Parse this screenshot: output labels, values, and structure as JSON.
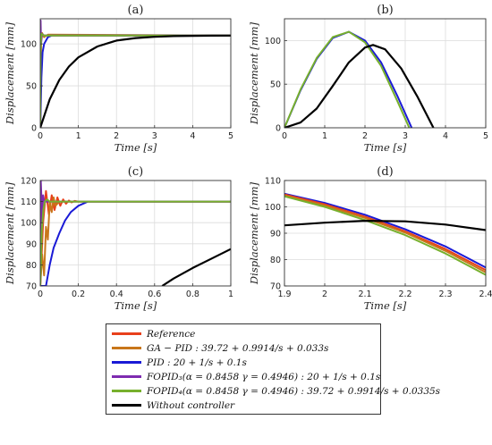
{
  "series_colors": {
    "reference": "#e8401c",
    "ga_pid": "#c8761a",
    "pid": "#1a1ad6",
    "fopid3": "#7e2bb0",
    "fopid4": "#77b02d",
    "without": "#000000"
  },
  "legend": [
    {
      "key": "reference",
      "label": "Reference"
    },
    {
      "key": "ga_pid",
      "label": "GA − PID : 39.72 + 0.9914/s + 0.033s"
    },
    {
      "key": "pid",
      "label": "PID : 20 + 1/s + 0.1s"
    },
    {
      "key": "fopid3",
      "label": "FOPID₃(α = 0.8458 γ = 0.4946) : 20 + 1/s + 0.1s"
    },
    {
      "key": "fopid4",
      "label": "FOPID₄(α = 0.8458 γ = 0.4946) : 39.72 + 0.9914/s + 0.0335s"
    },
    {
      "key": "without",
      "label": "Without controller"
    }
  ],
  "chart_data": [
    {
      "type": "line",
      "title": "(a)",
      "xlabel": "Time [s]",
      "ylabel": "Displacement [mm]",
      "xlim": [
        0,
        5
      ],
      "ylim": [
        0,
        130
      ],
      "xticks": [
        0,
        1,
        2,
        3,
        4,
        5
      ],
      "yticks": [
        0,
        50,
        100
      ],
      "series": [
        {
          "key": "reference",
          "x": [
            0,
            0.02,
            5
          ],
          "y": [
            0,
            110,
            110
          ]
        },
        {
          "key": "ga_pid",
          "x": [
            0,
            0.02,
            0.05,
            0.1,
            0.2,
            5
          ],
          "y": [
            0,
            105,
            113,
            108,
            111,
            110
          ]
        },
        {
          "key": "pid",
          "x": [
            0,
            0.03,
            0.06,
            0.1,
            0.2,
            0.3,
            5
          ],
          "y": [
            0,
            60,
            90,
            100,
            108,
            110,
            110
          ]
        },
        {
          "key": "fopid3",
          "x": [
            0,
            0.01,
            0.02,
            0.05,
            0.1,
            5
          ],
          "y": [
            0,
            128,
            100,
            112,
            110,
            110
          ]
        },
        {
          "key": "fopid4",
          "x": [
            0,
            0.01,
            0.03,
            0.1,
            5
          ],
          "y": [
            0,
            95,
            112,
            110,
            110
          ]
        },
        {
          "key": "without",
          "x": [
            0,
            0.25,
            0.5,
            0.75,
            1,
            1.5,
            2,
            2.5,
            3,
            3.5,
            4,
            4.5,
            5
          ],
          "y": [
            0,
            34,
            57,
            73,
            84,
            97,
            104,
            107,
            108.5,
            109.3,
            109.7,
            109.9,
            110
          ]
        }
      ]
    },
    {
      "type": "line",
      "title": "(b)",
      "xlabel": "Time [s]",
      "ylabel": "Displacement [mm]",
      "xlim": [
        0,
        5
      ],
      "ylim": [
        0,
        125
      ],
      "xticks": [
        0,
        1,
        2,
        3,
        4,
        5
      ],
      "yticks": [
        0,
        50,
        100
      ],
      "series": [
        {
          "key": "pid",
          "x": [
            0,
            0.4,
            0.8,
            1.2,
            1.6,
            2.0,
            2.4,
            2.8,
            3.16
          ],
          "y": [
            0,
            43,
            79,
            103,
            110,
            100,
            75,
            37,
            0
          ]
        },
        {
          "key": "fopid4",
          "x": [
            0,
            0.4,
            0.8,
            1.2,
            1.6,
            2.0,
            2.4,
            2.8,
            3.1
          ],
          "y": [
            0,
            44,
            80,
            104,
            110,
            98,
            71,
            31,
            0
          ]
        },
        {
          "key": "without",
          "x": [
            0,
            0.4,
            0.8,
            1.2,
            1.6,
            2.0,
            2.2,
            2.5,
            2.9,
            3.3,
            3.7
          ],
          "y": [
            0,
            6,
            22,
            48,
            75,
            92,
            95,
            90,
            68,
            36,
            0
          ]
        }
      ]
    },
    {
      "type": "line",
      "title": "(c)",
      "xlabel": "Time [s]",
      "ylabel": "Displacement [mm]",
      "xlim": [
        0,
        1
      ],
      "ylim": [
        70,
        120
      ],
      "xticks": [
        0,
        0.2,
        0.4,
        0.6,
        0.8,
        1
      ],
      "yticks": [
        70,
        80,
        90,
        100,
        110,
        120
      ],
      "series": [
        {
          "key": "reference",
          "x": [
            0,
            0.015,
            0.03,
            0.045,
            0.06,
            0.075,
            0.09,
            0.105,
            0.12,
            0.135,
            0.15,
            0.165,
            0.18,
            0.2,
            1
          ],
          "y": [
            70,
            100,
            115,
            104,
            113,
            106,
            112,
            108,
            111,
            109,
            110.5,
            109.6,
            110.3,
            110,
            110
          ]
        },
        {
          "key": "ga_pid",
          "x": [
            0,
            0.01,
            0.02,
            0.03,
            0.04,
            0.05,
            0.06,
            0.07,
            0.08,
            0.1,
            1
          ],
          "y": [
            70,
            85,
            75,
            98,
            92,
            110,
            105,
            112,
            108,
            110,
            110
          ]
        },
        {
          "key": "pid",
          "x": [
            0,
            0.03,
            0.05,
            0.07,
            0.1,
            0.13,
            0.16,
            0.2,
            0.25,
            1
          ],
          "y": [
            70,
            70,
            80,
            88,
            95,
            101,
            105,
            108,
            110,
            110
          ]
        },
        {
          "key": "fopid3",
          "x": [
            0,
            0.003,
            0.006,
            0.01,
            0.015,
            0.02,
            1
          ],
          "y": [
            70,
            120,
            112,
            100,
            113,
            110,
            110
          ]
        },
        {
          "key": "fopid4",
          "x": [
            0,
            0.008,
            0.016,
            0.024,
            0.035,
            0.05,
            1
          ],
          "y": [
            70,
            96,
            106,
            110,
            111,
            110,
            110
          ]
        },
        {
          "key": "without",
          "x": [
            0.64,
            0.7,
            0.8,
            0.9,
            1.0
          ],
          "y": [
            70,
            73.5,
            78.5,
            83,
            87.5
          ]
        }
      ]
    },
    {
      "type": "line",
      "title": "(d)",
      "xlabel": "Time [s]",
      "ylabel": "Displacement [mm]",
      "xlim": [
        1.9,
        2.4
      ],
      "ylim": [
        70,
        110
      ],
      "xticks": [
        1.9,
        2,
        2.1,
        2.2,
        2.3,
        2.4
      ],
      "yticks": [
        70,
        80,
        90,
        100,
        110
      ],
      "series": [
        {
          "key": "pid",
          "x": [
            1.9,
            2.0,
            2.1,
            2.2,
            2.3,
            2.4
          ],
          "y": [
            105,
            101.5,
            97,
            91.5,
            85,
            77
          ]
        },
        {
          "key": "reference",
          "x": [
            1.9,
            2.0,
            2.1,
            2.2,
            2.3,
            2.4
          ],
          "y": [
            104.7,
            101,
            96.3,
            90.7,
            84,
            76
          ]
        },
        {
          "key": "ga_pid",
          "x": [
            1.9,
            2.0,
            2.1,
            2.2,
            2.3,
            2.4
          ],
          "y": [
            104.3,
            100.5,
            95.8,
            90.2,
            83.3,
            75.2
          ]
        },
        {
          "key": "fopid4",
          "x": [
            1.9,
            2.0,
            2.1,
            2.2,
            2.3,
            2.4
          ],
          "y": [
            104,
            100,
            95,
            89.3,
            82.3,
            74.2
          ]
        },
        {
          "key": "without",
          "x": [
            1.9,
            2.0,
            2.1,
            2.2,
            2.3,
            2.4
          ],
          "y": [
            93,
            94,
            94.7,
            94.5,
            93.3,
            91.2
          ]
        }
      ]
    }
  ]
}
